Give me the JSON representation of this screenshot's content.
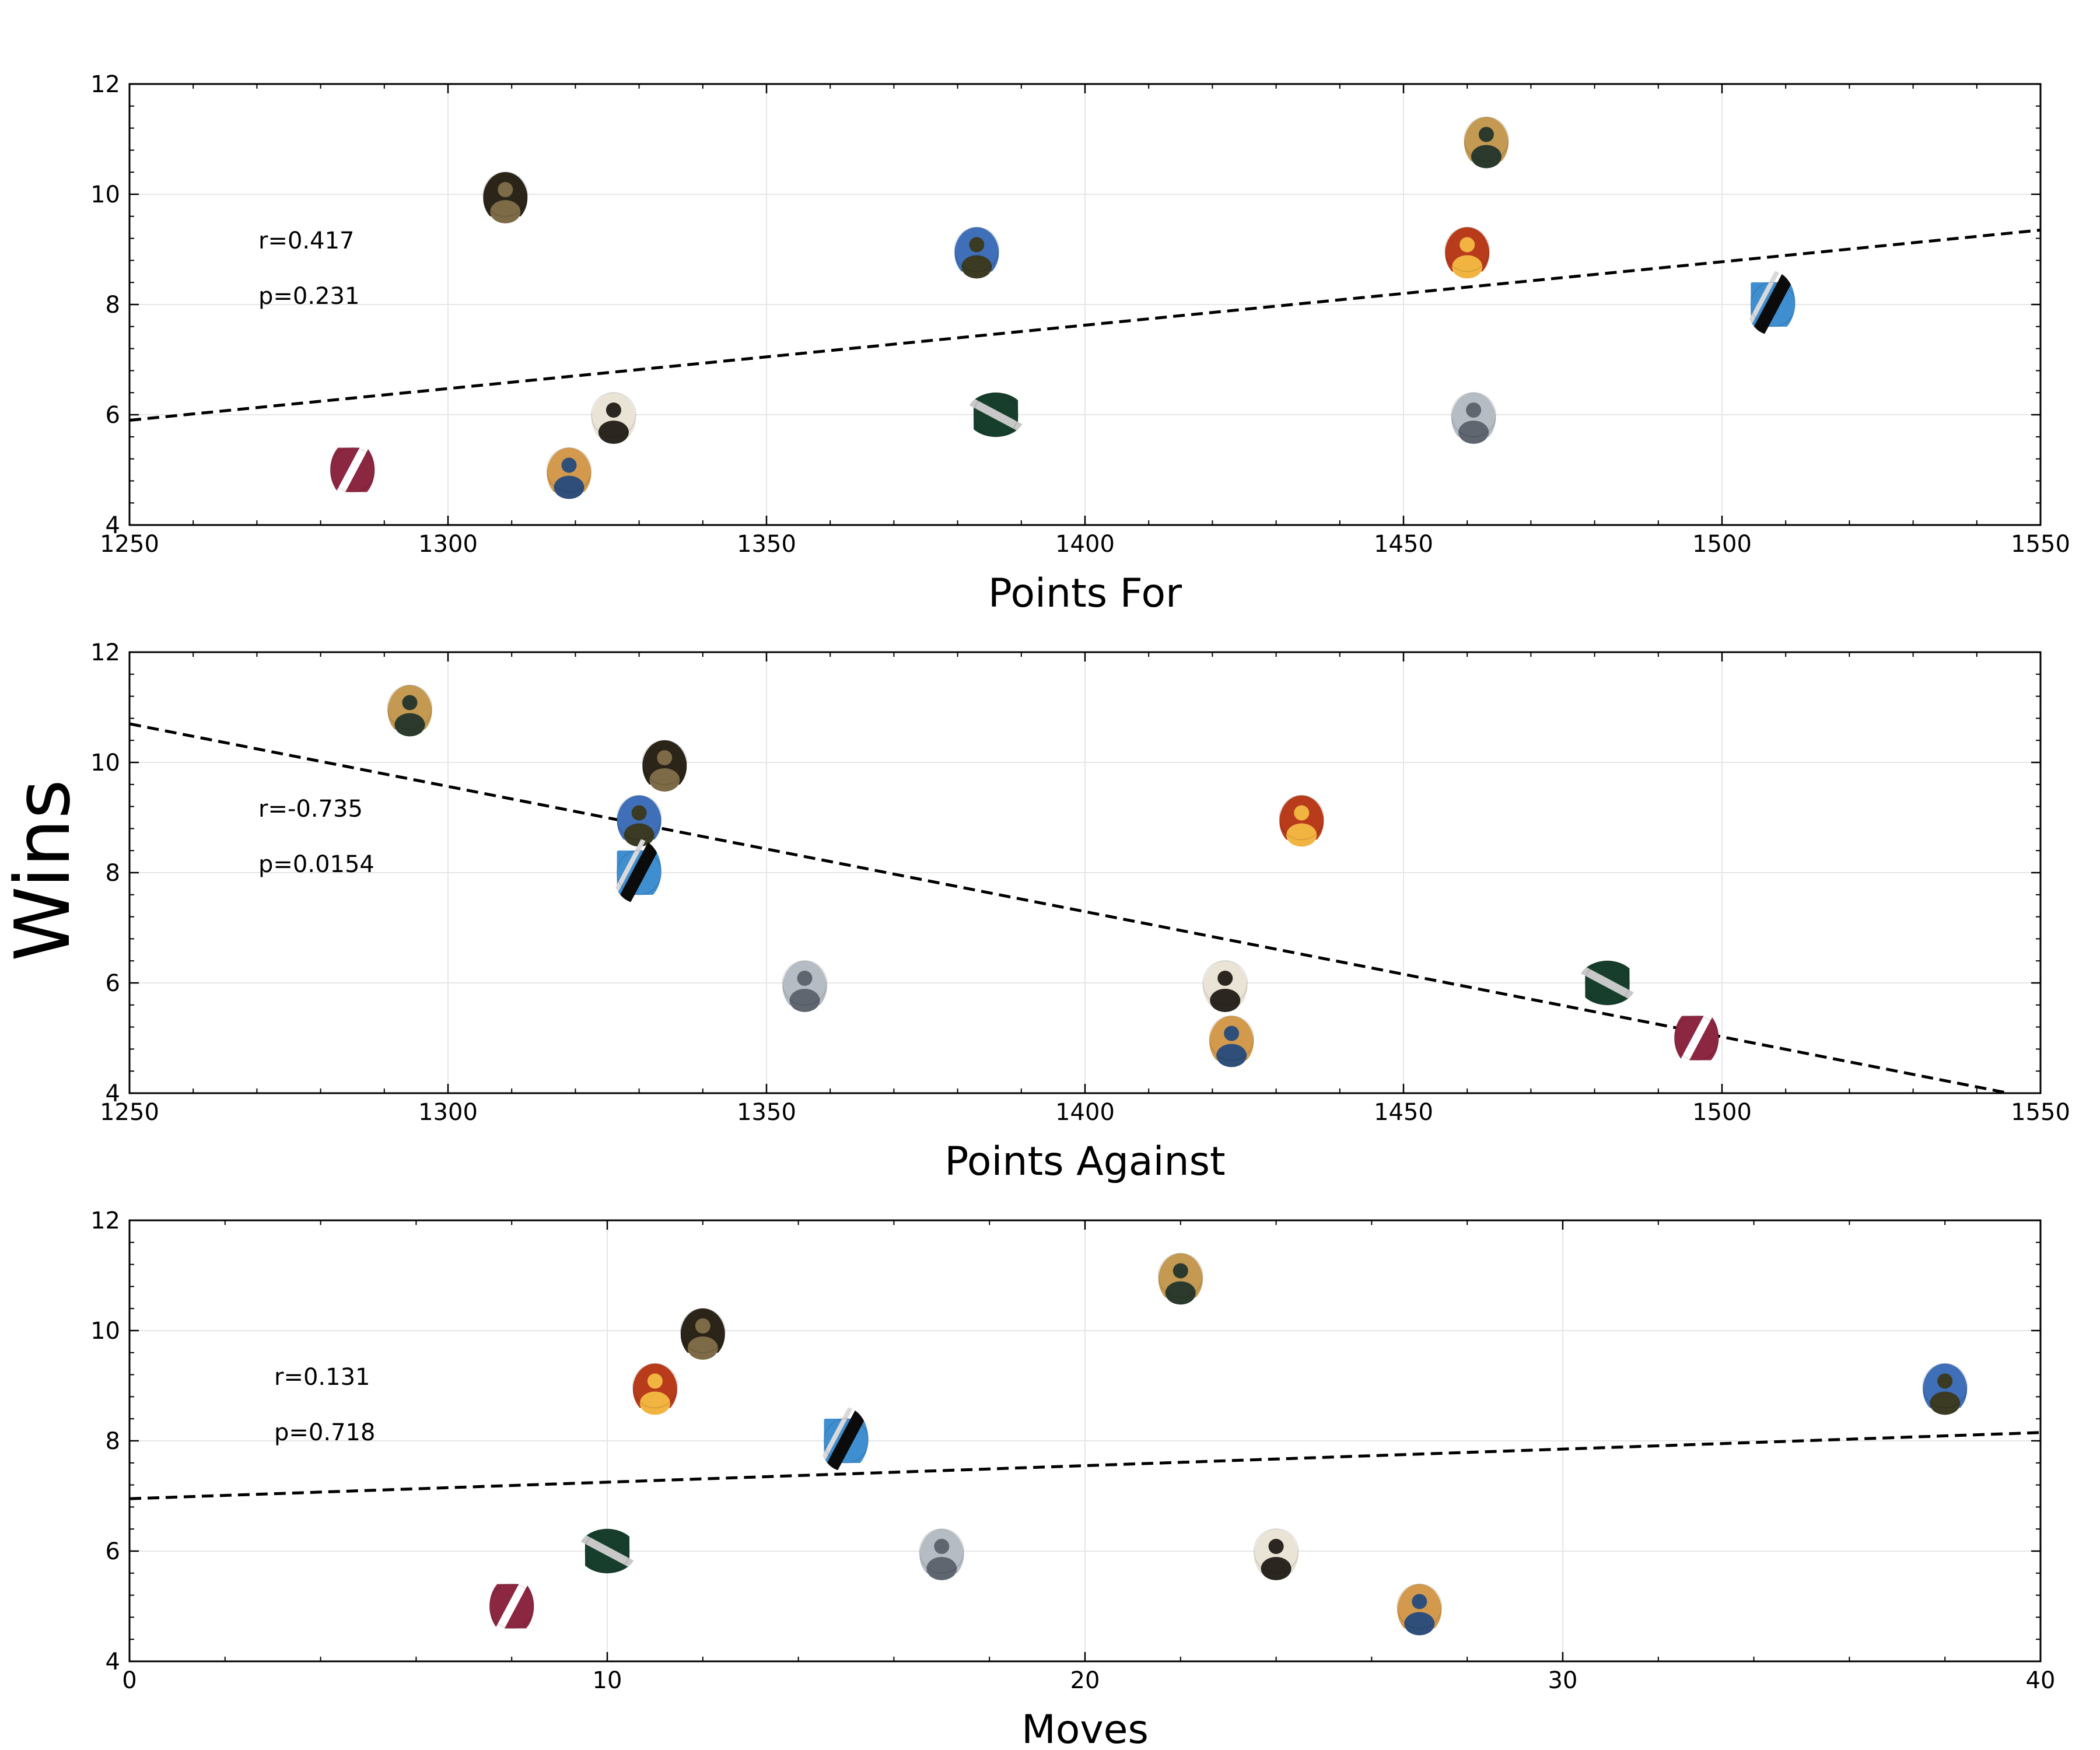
{
  "figure": {
    "ylabel": "Wins"
  },
  "colors": {
    "trend": "#000000",
    "grid": "#e6e6e6",
    "frame": "#000000",
    "teams": {
      "maroon-stripe": [
        "#8c2742",
        "#ffffff"
      ],
      "dark-portrait": [
        "#2a2419",
        "#7d6a46"
      ],
      "old-portrait": [
        "#e9e4d6",
        "#2b2620"
      ],
      "cap-player": [
        "#d39a4d",
        "#2f4f7a"
      ],
      "team-photo": [
        "#3f6fb8",
        "#3b3a23"
      ],
      "green-stripe": [
        "#173e2c",
        "#c8c8c8"
      ],
      "sunglasses-man": [
        "#c49a52",
        "#2c3a2d"
      ],
      "red-poster": [
        "#b83c1c",
        "#f2b441"
      ],
      "gray-emblem": [
        "#b6bcc4",
        "#5f6670"
      ],
      "blue-black-stripe": [
        "#3f8ed0",
        "#0b0b0b"
      ]
    }
  },
  "chart_data": [
    {
      "type": "scatter",
      "title": "",
      "xlabel": "Points For",
      "ylabel": "Wins",
      "xlim": [
        1250,
        1550
      ],
      "ylim": [
        4,
        12
      ],
      "xticks": [
        1250,
        1300,
        1350,
        1400,
        1450,
        1500,
        1550
      ],
      "yticks": [
        4,
        6,
        8,
        10,
        12
      ],
      "grid": true,
      "annotations": [
        "r=0.417",
        "p=0.231"
      ],
      "trendline": {
        "x": [
          1250,
          1550
        ],
        "y": [
          5.9,
          9.35
        ]
      },
      "points": [
        {
          "team": "maroon-stripe",
          "x": 1285,
          "y": 5
        },
        {
          "team": "dark-portrait",
          "x": 1309,
          "y": 10
        },
        {
          "team": "cap-player",
          "x": 1319,
          "y": 5
        },
        {
          "team": "old-portrait",
          "x": 1326,
          "y": 6
        },
        {
          "team": "team-photo",
          "x": 1383,
          "y": 9
        },
        {
          "team": "green-stripe",
          "x": 1386,
          "y": 6
        },
        {
          "team": "red-poster",
          "x": 1460,
          "y": 9
        },
        {
          "team": "gray-emblem",
          "x": 1461,
          "y": 6
        },
        {
          "team": "sunglasses-man",
          "x": 1463,
          "y": 11
        },
        {
          "team": "blue-black-stripe",
          "x": 1508,
          "y": 8
        }
      ]
    },
    {
      "type": "scatter",
      "title": "",
      "xlabel": "Points Against",
      "ylabel": "Wins",
      "xlim": [
        1250,
        1550
      ],
      "ylim": [
        4,
        12
      ],
      "xticks": [
        1250,
        1300,
        1350,
        1400,
        1450,
        1500,
        1550
      ],
      "yticks": [
        4,
        6,
        8,
        10,
        12
      ],
      "grid": true,
      "annotations": [
        "r=-0.735",
        "p=0.0154"
      ],
      "trendline": {
        "x": [
          1250,
          1545
        ],
        "y": [
          10.7,
          4.0
        ]
      },
      "points": [
        {
          "team": "sunglasses-man",
          "x": 1294,
          "y": 11
        },
        {
          "team": "team-photo",
          "x": 1330,
          "y": 9
        },
        {
          "team": "blue-black-stripe",
          "x": 1330,
          "y": 8
        },
        {
          "team": "dark-portrait",
          "x": 1334,
          "y": 10
        },
        {
          "team": "gray-emblem",
          "x": 1356,
          "y": 6
        },
        {
          "team": "old-portrait",
          "x": 1422,
          "y": 6
        },
        {
          "team": "cap-player",
          "x": 1423,
          "y": 5
        },
        {
          "team": "red-poster",
          "x": 1434,
          "y": 9
        },
        {
          "team": "green-stripe",
          "x": 1482,
          "y": 6
        },
        {
          "team": "maroon-stripe",
          "x": 1496,
          "y": 5
        }
      ]
    },
    {
      "type": "scatter",
      "title": "",
      "xlabel": "Moves",
      "ylabel": "Wins",
      "xlim": [
        0,
        40
      ],
      "ylim": [
        4,
        12
      ],
      "xticks": [
        0,
        10,
        20,
        30,
        40
      ],
      "yticks": [
        4,
        6,
        8,
        10,
        12
      ],
      "grid": true,
      "annotations": [
        "r=0.131",
        "p=0.718"
      ],
      "trendline": {
        "x": [
          0,
          40
        ],
        "y": [
          6.95,
          8.15
        ]
      },
      "points": [
        {
          "team": "maroon-stripe",
          "x": 8,
          "y": 5
        },
        {
          "team": "green-stripe",
          "x": 10,
          "y": 6
        },
        {
          "team": "red-poster",
          "x": 11,
          "y": 9
        },
        {
          "team": "dark-portrait",
          "x": 12,
          "y": 10
        },
        {
          "team": "blue-black-stripe",
          "x": 15,
          "y": 8
        },
        {
          "team": "gray-emblem",
          "x": 17,
          "y": 6
        },
        {
          "team": "sunglasses-man",
          "x": 22,
          "y": 11
        },
        {
          "team": "old-portrait",
          "x": 24,
          "y": 6
        },
        {
          "team": "cap-player",
          "x": 27,
          "y": 5
        },
        {
          "team": "team-photo",
          "x": 38,
          "y": 9
        }
      ]
    }
  ]
}
